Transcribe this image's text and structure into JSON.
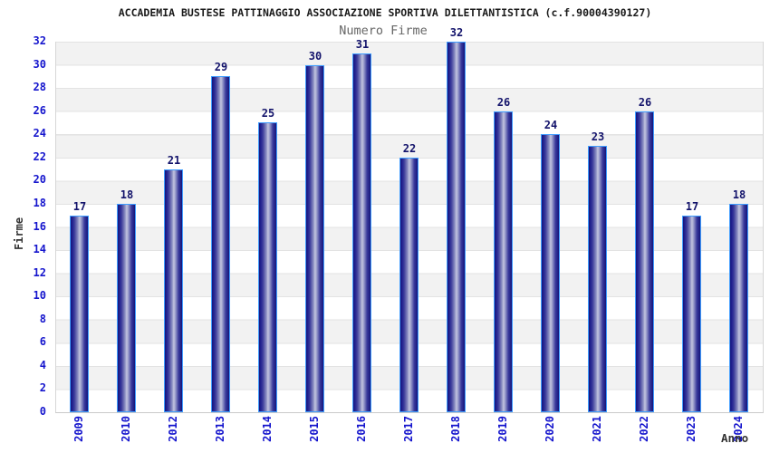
{
  "chart_data": {
    "type": "bar",
    "title": "ACCADEMIA BUSTESE PATTINAGGIO ASSOCIAZIONE SPORTIVA DILETTANTISTICA (c.f.90004390127)",
    "subtitle": "Numero Firme",
    "categories": [
      "2009",
      "2010",
      "2012",
      "2013",
      "2014",
      "2015",
      "2016",
      "2017",
      "2018",
      "2019",
      "2020",
      "2021",
      "2022",
      "2023",
      "2024"
    ],
    "values": [
      17,
      18,
      21,
      29,
      25,
      30,
      31,
      22,
      32,
      26,
      24,
      23,
      26,
      17,
      18
    ],
    "xlabel": "Anno",
    "ylabel": "Firme",
    "ylim": [
      0,
      32
    ],
    "ytick_step": 2,
    "grid": true,
    "legend": false,
    "bands": "alternating horizontal gray/white stripes every 2 units",
    "colors": {
      "bar_dark": "#14147a",
      "bar_light": "#c3c5e0",
      "bar_border": "#3f9dff",
      "tick_label": "#1515cd",
      "year_label": "#1515cd",
      "value_label": "#13136b",
      "band_gray": "#f2f2f2",
      "band_white": "#ffffff",
      "grid_line": "#e3e3e3"
    }
  }
}
